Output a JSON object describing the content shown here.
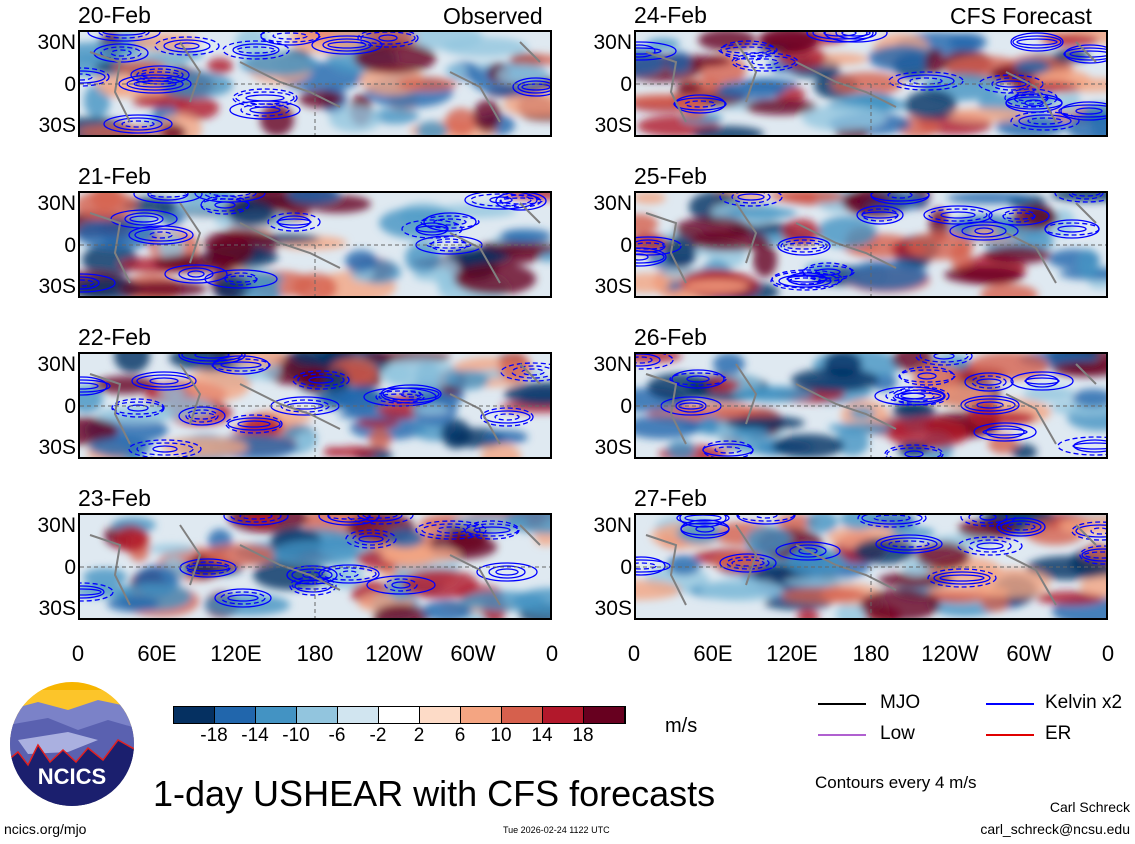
{
  "header": {
    "left_title": "Observed",
    "right_title": "CFS Forecast"
  },
  "panels": [
    {
      "date": "20-Feb",
      "kind": "observed"
    },
    {
      "date": "21-Feb",
      "kind": "observed"
    },
    {
      "date": "22-Feb",
      "kind": "observed"
    },
    {
      "date": "23-Feb",
      "kind": "observed"
    },
    {
      "date": "24-Feb",
      "kind": "forecast"
    },
    {
      "date": "25-Feb",
      "kind": "forecast"
    },
    {
      "date": "26-Feb",
      "kind": "forecast"
    },
    {
      "date": "27-Feb",
      "kind": "forecast"
    }
  ],
  "axes": {
    "lat_labels": [
      "30N",
      "0",
      "30S"
    ],
    "lon_labels": [
      "0",
      "60E",
      "120E",
      "180",
      "120W",
      "60W",
      "0"
    ]
  },
  "colorbar": {
    "colors": [
      "#053061",
      "#2166ac",
      "#4393c3",
      "#92c5de",
      "#d1e5f0",
      "#ffffff",
      "#fddbc7",
      "#f4a582",
      "#d6604d",
      "#b2182b",
      "#67001f"
    ],
    "labels": [
      "-18",
      "-14",
      "-10",
      "-6",
      "-2",
      "2",
      "6",
      "10",
      "14",
      "18"
    ],
    "units": "m/s"
  },
  "legend": {
    "items": [
      {
        "label": "MJO",
        "color": "#000000"
      },
      {
        "label": "Kelvin x2",
        "color": "#0000ff"
      },
      {
        "label": "Low",
        "color": "#b060d0"
      },
      {
        "label": "ER",
        "color": "#e00000"
      }
    ],
    "contours": "Contours every 4 m/s"
  },
  "footer": {
    "title": "1-day USHEAR with CFS forecasts",
    "logo_text": "NCICS",
    "site": "ncics.org/mjo",
    "timestamp": "Tue 2026-02-24 1122 UTC",
    "author": "Carl Schreck",
    "email": "carl_schreck@ncsu.edu"
  }
}
